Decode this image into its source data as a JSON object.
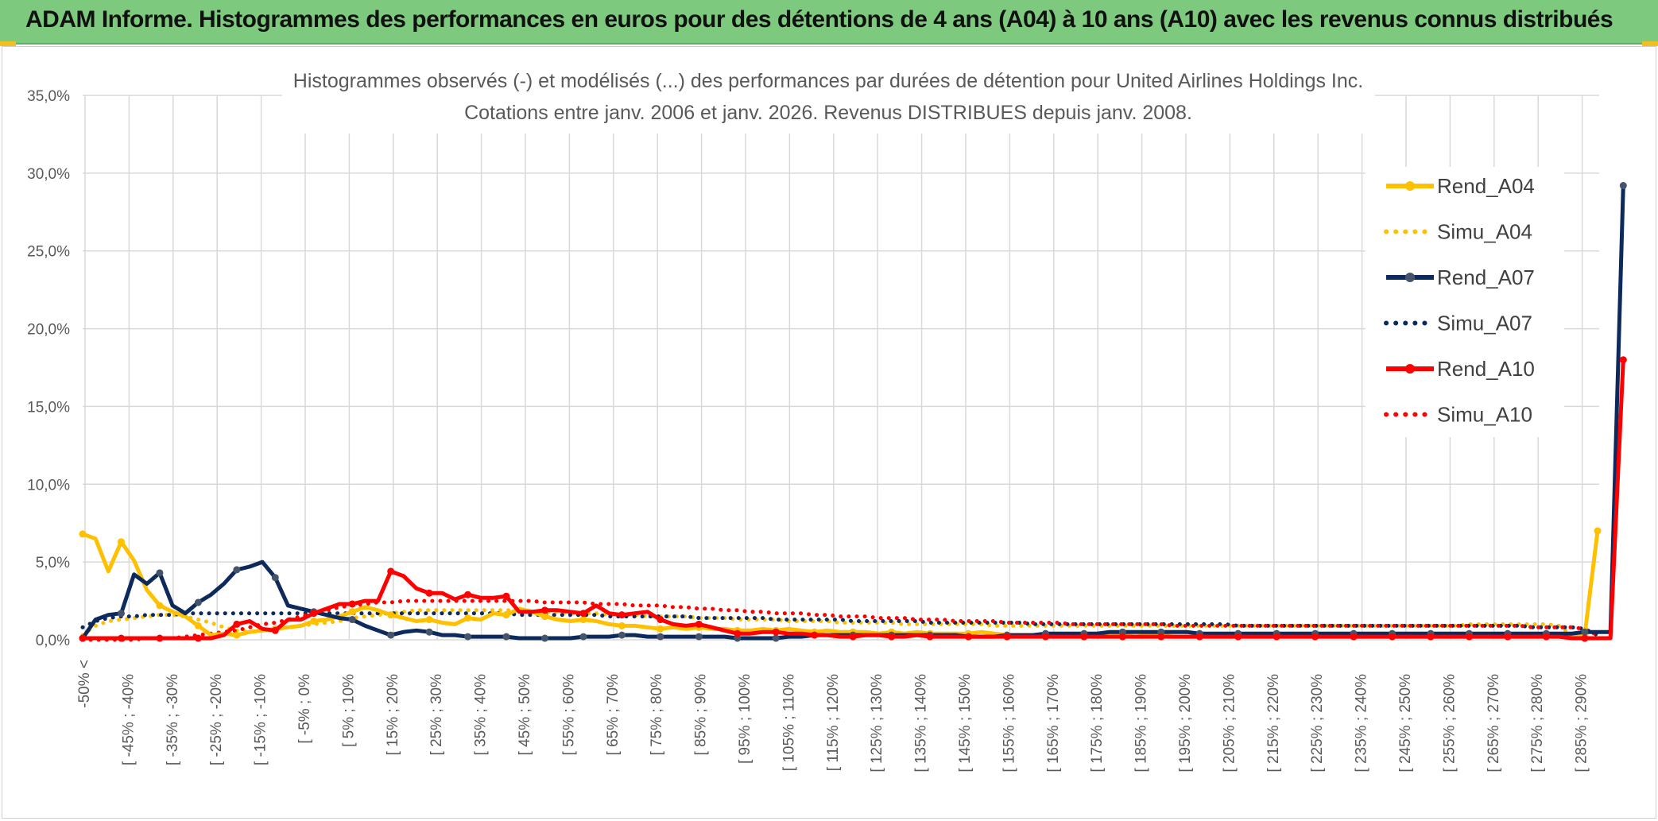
{
  "header": {
    "title": "ADAM Informe. Histogrammes des performances en euros pour des détentions de 4 ans (A04) à 10 ans (A10) avec les revenus connus distribués"
  },
  "chart_data": {
    "type": "line",
    "title": "Histogrammes observés (-) et modélisés (...) des performances par durées de détention pour United Airlines Holdings Inc.",
    "subtitle": "Cotations entre janv. 2006 et janv. 2026. Revenus DISTRIBUES depuis janv. 2008.",
    "xlabel": "",
    "ylabel": "",
    "ylim": [
      0,
      35
    ],
    "yticks": [
      "0,0%",
      "5,0%",
      "10,0%",
      "15,0%",
      "20,0%",
      "25,0%",
      "30,0%",
      "35,0%"
    ],
    "grid": true,
    "legend_position": "right",
    "x_labels": [
      "-50% <",
      "[ -45% ; -40%",
      "[ -35% ; -30%",
      "[ -25% ; -20%",
      "[ -15% ; -10%",
      "[ -5% ; 0%",
      "[ 5% ; 10%",
      "[ 15% ; 20%",
      "[ 25% ; 30%",
      "[ 35% ; 40%",
      "[ 45% ; 50%",
      "[ 55% ; 60%",
      "[ 65% ; 70%",
      "[ 75% ; 80%",
      "[ 85% ; 90%",
      "[ 95% ; 100%",
      "[ 105% ; 110%",
      "[ 115% ; 120%",
      "[ 125% ; 130%",
      "[ 135% ; 140%",
      "[ 145% ; 150%",
      "[ 155% ; 160%",
      "[ 165% ; 170%",
      "[ 175% ; 180%",
      "[ 185% ; 190%",
      "[ 195% ; 200%",
      "[ 205% ; 210%",
      "[ 215% ; 220%",
      "[ 225% ; 230%",
      "[ 235% ; 240%",
      "[ 245% ; 250%",
      "[ 255% ; 260%",
      "[ 265% ; 270%",
      "[ 275% ; 280%",
      "[ 285% ; 290%"
    ],
    "series": [
      {
        "name": "Rend_A04",
        "style": "solid",
        "color": "#ffc000",
        "values": [
          6.8,
          6.5,
          4.4,
          6.3,
          5.1,
          3.2,
          2.2,
          1.8,
          1.5,
          0.9,
          0.3,
          0.4,
          0.3,
          0.5,
          0.6,
          0.7,
          0.8,
          0.9,
          1.2,
          1.3,
          1.5,
          1.8,
          2.1,
          1.9,
          1.6,
          1.4,
          1.2,
          1.3,
          1.1,
          1.0,
          1.4,
          1.3,
          1.7,
          1.6,
          2.0,
          1.8,
          1.5,
          1.3,
          1.2,
          1.3,
          1.2,
          1.0,
          0.9,
          0.9,
          0.8,
          0.7,
          0.8,
          0.7,
          0.8,
          0.7,
          0.7,
          0.6,
          0.6,
          0.7,
          0.6,
          0.7,
          0.6,
          0.5,
          0.6,
          0.5,
          0.5,
          0.5,
          0.4,
          0.5,
          0.4,
          0.5,
          0.4,
          0.4,
          0.4,
          0.4,
          0.5,
          0.4,
          0.3,
          0.3,
          0.3,
          0.3,
          0.3,
          0.3,
          0.2,
          0.3,
          0.3,
          0.3,
          0.2,
          0.3,
          0.3,
          0.2,
          0.2,
          0.2,
          0.2,
          0.2,
          0.2,
          0.2,
          0.2,
          0.2,
          0.2,
          0.2,
          0.2,
          0.2,
          0.2,
          0.2,
          0.2,
          0.2,
          0.2,
          0.2,
          0.2,
          0.2,
          0.2,
          0.2,
          0.2,
          0.2,
          0.2,
          0.2,
          0.2,
          0.2,
          0.3,
          0.3,
          0.2,
          0.3,
          7.0
        ]
      },
      {
        "name": "Simu_A04",
        "style": "dotted",
        "color": "#ffc000",
        "values": [
          0.3,
          0.9,
          1.2,
          1.3,
          1.4,
          1.5,
          1.6,
          1.6,
          1.5,
          1.3,
          1.1,
          0.8,
          0.6,
          0.5,
          0.6,
          0.7,
          0.8,
          0.9,
          1.0,
          1.1,
          1.2,
          1.4,
          1.5,
          1.6,
          1.7,
          1.8,
          1.9,
          1.9,
          1.9,
          1.9,
          1.9,
          1.9,
          1.9,
          1.9,
          1.9,
          1.8,
          1.8,
          1.8,
          1.7,
          1.7,
          1.7,
          1.6,
          1.6,
          1.6,
          1.5,
          1.5,
          1.5,
          1.5,
          1.4,
          1.4,
          1.4,
          1.3,
          1.3,
          1.3,
          1.3,
          1.2,
          1.2,
          1.2,
          1.2,
          1.1,
          1.1,
          1.1,
          1.1,
          1.1,
          1.0,
          1.0,
          1.0,
          1.0,
          1.0,
          1.0,
          1.0,
          0.9,
          0.9,
          0.9,
          0.9,
          0.9,
          0.9,
          0.9,
          0.9,
          0.9,
          0.9,
          0.9,
          0.9,
          0.9,
          0.9,
          0.9,
          0.9,
          0.9,
          0.9,
          0.9,
          0.9,
          0.9,
          0.9,
          0.9,
          0.9,
          0.9,
          0.9,
          0.9,
          0.9,
          0.9,
          0.9,
          0.9,
          0.9,
          0.9,
          0.9,
          0.9,
          0.9,
          0.9,
          1.0,
          1.0,
          1.0,
          1.0,
          1.0,
          1.0,
          1.0,
          0.9,
          0.3
        ]
      },
      {
        "name": "Rend_A07",
        "style": "solid",
        "color": "#0d2a5c",
        "values": [
          0.1,
          1.3,
          1.6,
          1.7,
          4.2,
          3.6,
          4.3,
          2.2,
          1.7,
          2.4,
          2.9,
          3.6,
          4.5,
          4.7,
          5.0,
          4.0,
          2.2,
          2.0,
          1.8,
          1.6,
          1.4,
          1.3,
          0.9,
          0.6,
          0.3,
          0.5,
          0.6,
          0.5,
          0.3,
          0.3,
          0.2,
          0.2,
          0.2,
          0.2,
          0.1,
          0.1,
          0.1,
          0.1,
          0.1,
          0.2,
          0.2,
          0.2,
          0.3,
          0.3,
          0.2,
          0.2,
          0.2,
          0.2,
          0.2,
          0.2,
          0.2,
          0.1,
          0.1,
          0.1,
          0.1,
          0.2,
          0.2,
          0.3,
          0.3,
          0.3,
          0.3,
          0.3,
          0.3,
          0.3,
          0.3,
          0.3,
          0.3,
          0.3,
          0.3,
          0.2,
          0.2,
          0.2,
          0.3,
          0.3,
          0.3,
          0.4,
          0.4,
          0.4,
          0.4,
          0.4,
          0.5,
          0.5,
          0.5,
          0.5,
          0.5,
          0.5,
          0.5,
          0.4,
          0.4,
          0.4,
          0.4,
          0.4,
          0.4,
          0.4,
          0.4,
          0.4,
          0.4,
          0.4,
          0.4,
          0.4,
          0.4,
          0.4,
          0.4,
          0.4,
          0.4,
          0.4,
          0.4,
          0.4,
          0.4,
          0.4,
          0.4,
          0.4,
          0.4,
          0.4,
          0.4,
          0.4,
          0.4,
          0.5,
          0.5,
          0.5,
          29.2
        ]
      },
      {
        "name": "Simu_A07",
        "style": "dotted",
        "color": "#0d2a5c",
        "values": [
          0.8,
          1.2,
          1.4,
          1.5,
          1.5,
          1.6,
          1.6,
          1.6,
          1.7,
          1.7,
          1.7,
          1.7,
          1.7,
          1.7,
          1.7,
          1.7,
          1.7,
          1.7,
          1.7,
          1.7,
          1.7,
          1.7,
          1.7,
          1.7,
          1.7,
          1.7,
          1.7,
          1.7,
          1.7,
          1.7,
          1.7,
          1.7,
          1.7,
          1.7,
          1.6,
          1.6,
          1.6,
          1.6,
          1.6,
          1.6,
          1.6,
          1.5,
          1.5,
          1.5,
          1.5,
          1.5,
          1.5,
          1.5,
          1.4,
          1.4,
          1.4,
          1.4,
          1.4,
          1.4,
          1.3,
          1.3,
          1.3,
          1.3,
          1.3,
          1.3,
          1.2,
          1.2,
          1.2,
          1.2,
          1.2,
          1.2,
          1.1,
          1.1,
          1.1,
          1.1,
          1.1,
          1.1,
          1.1,
          1.1,
          1.0,
          1.0,
          1.0,
          1.0,
          1.0,
          1.0,
          1.0,
          1.0,
          1.0,
          1.0,
          1.0,
          1.0,
          1.0,
          1.0,
          1.0,
          1.0,
          0.9,
          0.9,
          0.9,
          0.9,
          0.9,
          0.9,
          0.9,
          0.9,
          0.9,
          0.9,
          0.9,
          0.9,
          0.9,
          0.9,
          0.9,
          0.9,
          0.9,
          0.9,
          0.9,
          0.9,
          0.9,
          0.9,
          0.9,
          0.8,
          0.8,
          0.8,
          0.8,
          0.7,
          0.3
        ]
      },
      {
        "name": "Rend_A10",
        "style": "solid",
        "color": "#ff0000",
        "values": [
          0.1,
          0.1,
          0.1,
          0.1,
          0.1,
          0.1,
          0.1,
          0.1,
          0.1,
          0.1,
          0.1,
          0.3,
          1.0,
          1.2,
          0.7,
          0.6,
          1.3,
          1.3,
          1.7,
          2.0,
          2.3,
          2.3,
          2.5,
          2.5,
          4.4,
          4.1,
          3.3,
          3.0,
          3.0,
          2.6,
          2.9,
          2.7,
          2.7,
          2.8,
          1.8,
          1.8,
          1.9,
          1.9,
          1.8,
          1.7,
          2.2,
          1.7,
          1.6,
          1.7,
          1.8,
          1.3,
          1.0,
          0.9,
          1.0,
          0.8,
          0.6,
          0.4,
          0.4,
          0.5,
          0.5,
          0.4,
          0.4,
          0.3,
          0.3,
          0.2,
          0.2,
          0.3,
          0.3,
          0.2,
          0.2,
          0.3,
          0.2,
          0.2,
          0.2,
          0.2,
          0.2,
          0.2,
          0.2,
          0.2,
          0.2,
          0.2,
          0.2,
          0.2,
          0.2,
          0.2,
          0.2,
          0.2,
          0.2,
          0.2,
          0.2,
          0.2,
          0.2,
          0.2,
          0.2,
          0.2,
          0.2,
          0.2,
          0.2,
          0.2,
          0.2,
          0.2,
          0.2,
          0.2,
          0.2,
          0.2,
          0.2,
          0.2,
          0.2,
          0.2,
          0.2,
          0.2,
          0.2,
          0.2,
          0.2,
          0.2,
          0.2,
          0.2,
          0.2,
          0.2,
          0.2,
          0.2,
          0.1,
          0.1,
          0.1,
          0.1,
          18.0
        ]
      },
      {
        "name": "Simu_A10",
        "style": "dotted",
        "color": "#ff0000",
        "values": [
          0.0,
          0.0,
          0.0,
          0.0,
          0.0,
          0.1,
          0.1,
          0.1,
          0.2,
          0.3,
          0.4,
          0.5,
          0.6,
          0.8,
          1.0,
          1.1,
          1.3,
          1.5,
          1.7,
          1.9,
          2.1,
          2.2,
          2.3,
          2.4,
          2.4,
          2.5,
          2.5,
          2.5,
          2.5,
          2.5,
          2.5,
          2.5,
          2.5,
          2.5,
          2.5,
          2.5,
          2.4,
          2.4,
          2.4,
          2.4,
          2.3,
          2.3,
          2.3,
          2.2,
          2.2,
          2.2,
          2.1,
          2.1,
          2.0,
          2.0,
          1.9,
          1.9,
          1.8,
          1.8,
          1.7,
          1.7,
          1.7,
          1.6,
          1.6,
          1.5,
          1.5,
          1.5,
          1.4,
          1.4,
          1.4,
          1.3,
          1.3,
          1.3,
          1.2,
          1.2,
          1.2,
          1.2,
          1.1,
          1.1,
          1.1,
          1.1,
          1.1,
          1.0,
          1.0,
          1.0,
          1.0,
          1.0,
          1.0,
          1.0,
          1.0,
          0.9,
          0.9,
          0.9,
          0.9,
          0.9,
          0.9,
          0.9,
          0.9,
          0.9,
          0.9,
          0.9,
          0.9,
          0.9,
          0.9,
          0.9,
          0.9,
          0.9,
          0.9,
          0.9,
          0.9,
          0.9,
          0.9,
          0.9,
          0.9,
          0.9,
          0.9,
          0.9,
          0.9,
          0.8,
          0.8,
          0.8,
          0.8,
          0.7,
          0.3
        ]
      }
    ]
  }
}
